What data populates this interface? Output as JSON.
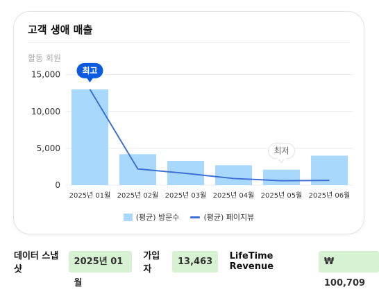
{
  "card": {
    "title": "고객 생애 매출"
  },
  "chart_data": {
    "type": "bar",
    "ylabel": "활동 회원",
    "ylim": [
      0,
      16000
    ],
    "yticks": [
      {
        "value": 0,
        "label": "0"
      },
      {
        "value": 5000,
        "label": "5,000"
      },
      {
        "value": 10000,
        "label": "10,000"
      },
      {
        "value": 15000,
        "label": "15,000"
      }
    ],
    "categories": [
      "2025년 01월",
      "2025년 02월",
      "2025년 03월",
      "2025년 04월",
      "2025년 05월",
      "2025년 06월"
    ],
    "series": [
      {
        "name": "(평균) 방문수",
        "type": "bar",
        "color": "#a8d8fb",
        "values": [
          13000,
          4200,
          3300,
          2700,
          2100,
          4000
        ]
      },
      {
        "name": "(평균) 페이지뷰",
        "type": "line",
        "color": "#3d6fd4",
        "values": [
          13000,
          2200,
          1600,
          900,
          600,
          650
        ]
      }
    ],
    "annotations": [
      {
        "text": "최고",
        "category_index": 0,
        "style": "filled",
        "color": "#0a5be0"
      },
      {
        "text": "최저",
        "category_index": 4,
        "style": "outline",
        "color": "#666666"
      }
    ],
    "grid": true,
    "legend_position": "bottom"
  },
  "stats": {
    "snapshot_label": "데이터 스냅샷",
    "snapshot_value": "2025년 01월",
    "signup_label": "가입자",
    "signup_value": "13,463",
    "ltv_label": "LifeTime Revenue",
    "ltv_value": "₩ 100,709"
  }
}
